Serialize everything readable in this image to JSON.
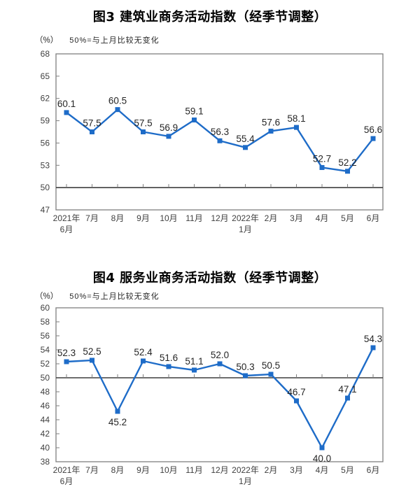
{
  "page": {
    "background": "#ffffff"
  },
  "style": {
    "line_color": "#1E6CC8",
    "marker_color": "#1E6CC8",
    "plot_border_color": "#7F7F7F",
    "reference_line_color": "#3F3F3F",
    "tick_color": "#7F7F7F",
    "axis_label_color": "#404040",
    "data_label_color": "#262626",
    "title_color": "#000000"
  },
  "chart_data": [
    {
      "id": "fig3",
      "type": "line",
      "title": "图3 建筑业商务活动指数（经季节调整）",
      "unit_label": "（%）",
      "note": "50%=与上月比较无变化",
      "categories": [
        "2021年\n6月",
        "7月",
        "8月",
        "9月",
        "10月",
        "11月",
        "12月",
        "2022年\n1月",
        "2月",
        "3月",
        "4月",
        "5月",
        "6月"
      ],
      "values": [
        60.1,
        57.5,
        60.5,
        57.5,
        56.9,
        59.1,
        56.3,
        55.4,
        57.6,
        58.1,
        52.7,
        52.2,
        56.6
      ],
      "ylim": [
        47,
        68
      ],
      "ytick_step": 3,
      "reference_y": 50,
      "label_position": [
        "above",
        "above",
        "above",
        "above",
        "above",
        "above",
        "above",
        "above",
        "above",
        "above",
        "above",
        "above",
        "above"
      ],
      "grid": false,
      "legend": "none"
    },
    {
      "id": "fig4",
      "type": "line",
      "title": "图4 服务业商务活动指数（经季节调整）",
      "unit_label": "（%）",
      "note": "50%=与上月比较无变化",
      "categories": [
        "2021年\n6月",
        "7月",
        "8月",
        "9月",
        "10月",
        "11月",
        "12月",
        "2022年\n1月",
        "2月",
        "3月",
        "4月",
        "5月",
        "6月"
      ],
      "values": [
        52.3,
        52.5,
        45.2,
        52.4,
        51.6,
        51.1,
        52.0,
        50.3,
        50.5,
        46.7,
        40.0,
        47.1,
        54.3
      ],
      "ylim": [
        38,
        60
      ],
      "ytick_step": 2,
      "reference_y": 50,
      "label_position": [
        "above",
        "above",
        "below",
        "above",
        "above",
        "above",
        "above",
        "above",
        "above",
        "above",
        "below",
        "above",
        "above"
      ],
      "grid": false,
      "legend": "none"
    }
  ]
}
